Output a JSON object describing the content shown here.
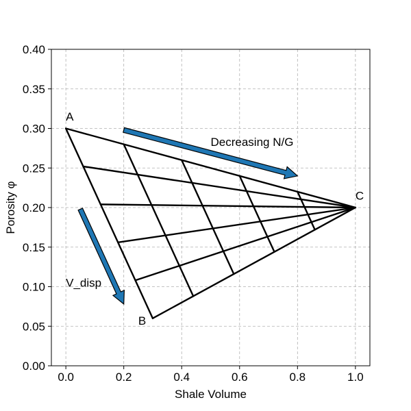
{
  "chart_data": {
    "type": "line",
    "title": "",
    "xlabel": "Shale Volume",
    "ylabel": "Porosity φ",
    "xlim": [
      -0.05,
      1.05
    ],
    "ylim": [
      0.0,
      0.4
    ],
    "grid": true,
    "xticks": [
      0.0,
      0.2,
      0.4,
      0.6,
      0.8,
      1.0
    ],
    "xtick_labels": [
      "0.0",
      "0.2",
      "0.4",
      "0.6",
      "0.8",
      "1.0"
    ],
    "yticks": [
      0.0,
      0.05,
      0.1,
      0.15,
      0.2,
      0.25,
      0.3,
      0.35,
      0.4
    ],
    "ytick_labels": [
      "0.00",
      "0.05",
      "0.10",
      "0.15",
      "0.20",
      "0.25",
      "0.30",
      "0.35",
      "0.40"
    ],
    "points": {
      "A": {
        "x": 0.0,
        "y": 0.3
      },
      "B": {
        "x": 0.3,
        "y": 0.06
      },
      "C": {
        "x": 1.0,
        "y": 0.2
      }
    },
    "grid_divisions": 5,
    "annotations": [
      {
        "name": "label-A",
        "text": "A",
        "x": 0.0,
        "y": 0.31
      },
      {
        "name": "label-B",
        "text": "B",
        "x": 0.25,
        "y": 0.052
      },
      {
        "name": "label-C",
        "text": "C",
        "x": 1.0,
        "y": 0.21
      },
      {
        "name": "label-decreasing-ng",
        "text": "Decreasing N/G",
        "x": 0.5,
        "y": 0.278
      },
      {
        "name": "label-v-disp",
        "text": "V_disp",
        "x": 0.0,
        "y": 0.1
      }
    ],
    "arrows": [
      {
        "name": "decreasing-ng-arrow",
        "from": [
          0.2,
          0.298
        ],
        "to": [
          0.8,
          0.24
        ]
      },
      {
        "name": "v-disp-arrow",
        "from": [
          0.05,
          0.198
        ],
        "to": [
          0.2,
          0.078
        ]
      }
    ],
    "colors": {
      "arrow": "#1f77b4",
      "line": "#000000",
      "grid": "#b0b0b0"
    }
  }
}
